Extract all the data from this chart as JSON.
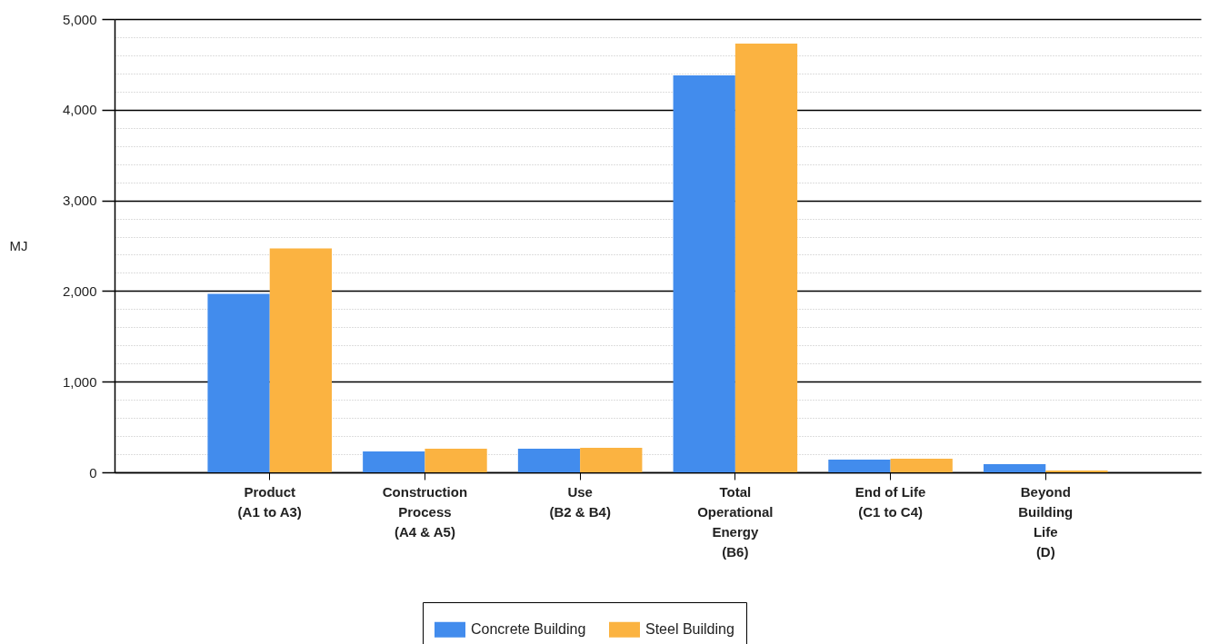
{
  "chart_data": {
    "type": "bar",
    "ylabel": "MJ",
    "categories": [
      "Product (A1 to A3)",
      "Construction Process (A4 & A5)",
      "Use (B2 & B4)",
      "Total Operational Energy (B6)",
      "End of Life (C1 to C4)",
      "Beyond Building Life (D)"
    ],
    "series": [
      {
        "name": "Concrete Building",
        "color": "#428ced",
        "values": [
          1970,
          230,
          260,
          4380,
          140,
          90
        ]
      },
      {
        "name": "Steel Building",
        "color": "#fbb341",
        "values": [
          2470,
          260,
          270,
          4730,
          150,
          20
        ]
      }
    ],
    "ylim": [
      0,
      5000
    ],
    "yticks": [
      0,
      {
        "value": 200,
        "label": null
      },
      {
        "value": 400,
        "label": null
      },
      {
        "value": 600,
        "label": null
      },
      {
        "value": 800,
        "label": null
      },
      {
        "value": 1000,
        "label": "1,000"
      },
      {
        "value": 1200,
        "label": null
      },
      {
        "value": 1400,
        "label": null
      },
      {
        "value": 1600,
        "label": null
      },
      {
        "value": 1800,
        "label": null
      },
      {
        "value": 2000,
        "label": "2,000"
      },
      {
        "value": 2200,
        "label": null
      },
      {
        "value": 2400,
        "label": null
      },
      {
        "value": 2600,
        "label": null
      },
      {
        "value": 2800,
        "label": null
      },
      {
        "value": 3000,
        "label": "3,000"
      },
      {
        "value": 3200,
        "label": null
      },
      {
        "value": 3400,
        "label": null
      },
      {
        "value": 3600,
        "label": null
      },
      {
        "value": 3800,
        "label": null
      },
      {
        "value": 4000,
        "label": "4,000"
      },
      {
        "value": 4200,
        "label": null
      },
      {
        "value": 4400,
        "label": null
      },
      {
        "value": 4600,
        "label": null
      },
      {
        "value": 4800,
        "label": null
      },
      {
        "value": 5000,
        "label": "5,000"
      }
    ],
    "grid": "y",
    "legend": "bottom"
  }
}
